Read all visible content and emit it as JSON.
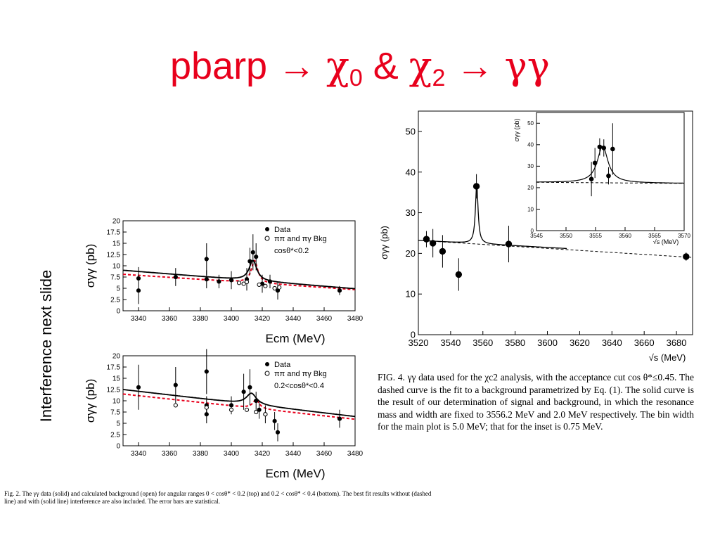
{
  "slide": {
    "title": {
      "part1": "pbarp ",
      "arrow1": "→ ",
      "chi": "χ",
      "sub0": "0",
      "amp": " & ",
      "chi2": "χ",
      "sub2": "2",
      "arrow2": " → ",
      "gg": "γγ"
    },
    "side_note": "Interference next slide",
    "left_caption": "Fig. 2. The γγ data (solid) and calculated background (open) for angular ranges 0 < cosθ* < 0.2 (top) and 0.2 < cosθ* < 0.4 (bottom). The best fit results without (dashed line) and with (solid line) interference are also included. The error bars are statistical.",
    "right_caption": "FIG. 4. γγ data used for the χc2 analysis, with the acceptance cut cos θ*≤0.45. The dashed curve is the fit to a background parametrized by Eq. (1). The solid curve is the result of our determination of signal and background, in which the resonance mass and width are fixed to 3556.2 MeV and 2.0 MeV respectively. The bin width for the main plot is 5.0 MeV; that for the inset is 0.75 MeV."
  },
  "colors": {
    "title": "#e8001c",
    "fit_dashed_left": "#e8001c",
    "ink": "#000000"
  },
  "chart_data": [
    {
      "id": "left-top",
      "type": "scatter",
      "xlabel": "E_cm (MeV)",
      "ylabel": "σγγ (pb)",
      "xlim": [
        3330,
        3480
      ],
      "ylim": [
        0,
        20
      ],
      "xticks": [
        "3340",
        "3360",
        "3380",
        "3400",
        "3420",
        "3440",
        "3460",
        "3480"
      ],
      "yticks": [
        "0",
        "2.5",
        "5",
        "7.5",
        "10",
        "12.5",
        "15",
        "17.5",
        "20"
      ],
      "legend": [
        "Data",
        "ππ and πγ Bkg"
      ],
      "annotation": "cosθ*<0.2",
      "series": [
        {
          "name": "Data",
          "points": [
            {
              "x": 3340,
              "y": 7.2,
              "e": 2.5
            },
            {
              "x": 3340,
              "y": 4.5,
              "e": 3
            },
            {
              "x": 3364,
              "y": 7.5,
              "e": 2
            },
            {
              "x": 3384,
              "y": 11.5,
              "e": 3.5
            },
            {
              "x": 3384,
              "y": 7,
              "e": 2
            },
            {
              "x": 3392,
              "y": 6.5,
              "e": 1.5
            },
            {
              "x": 3400,
              "y": 6.8,
              "e": 2
            },
            {
              "x": 3410,
              "y": 7,
              "e": 2.5
            },
            {
              "x": 3412,
              "y": 11,
              "e": 3
            },
            {
              "x": 3414,
              "y": 13,
              "e": 4
            },
            {
              "x": 3416,
              "y": 12,
              "e": 3
            },
            {
              "x": 3420,
              "y": 6,
              "e": 2
            },
            {
              "x": 3425,
              "y": 6.5,
              "e": 1.5
            },
            {
              "x": 3430,
              "y": 4.5,
              "e": 2
            },
            {
              "x": 3470,
              "y": 4.5,
              "e": 1
            }
          ]
        },
        {
          "name": "ππ and πγ Bkg",
          "points": [
            {
              "x": 3405,
              "y": 6.2
            },
            {
              "x": 3408,
              "y": 6
            },
            {
              "x": 3410,
              "y": 6.4
            },
            {
              "x": 3418,
              "y": 5.8
            },
            {
              "x": 3422,
              "y": 5.5
            },
            {
              "x": 3428,
              "y": 5
            },
            {
              "x": 3431,
              "y": 5.2
            }
          ]
        }
      ],
      "fit_solid": {
        "base": [
          9.0,
          4.9
        ],
        "peak_x": 3414,
        "peak_h": 4.5,
        "width": 3
      },
      "fit_dashed": {
        "base": [
          8.1,
          4.7
        ],
        "peak_x": 3415,
        "peak_h": 5.0,
        "width": 2.5
      }
    },
    {
      "id": "left-bottom",
      "type": "scatter",
      "xlabel": "E_cm (MeV)",
      "ylabel": "σγγ (pb)",
      "xlim": [
        3330,
        3480
      ],
      "ylim": [
        0,
        20
      ],
      "xticks": [
        "3340",
        "3360",
        "3380",
        "3400",
        "3420",
        "3440",
        "3460",
        "3480"
      ],
      "yticks": [
        "0",
        "2.5",
        "5",
        "7.5",
        "10",
        "12.5",
        "15",
        "17.5",
        "20"
      ],
      "legend": [
        "Data",
        "ππ and πγ Bkg"
      ],
      "annotation": "0.2<cosθ*<0.4",
      "series": [
        {
          "name": "Data",
          "points": [
            {
              "x": 3340,
              "y": 13,
              "e": 5
            },
            {
              "x": 3364,
              "y": 13.5,
              "e": 4
            },
            {
              "x": 3384,
              "y": 16.5,
              "e": 5
            },
            {
              "x": 3384,
              "y": 9,
              "e": 2
            },
            {
              "x": 3384,
              "y": 7,
              "e": 2
            },
            {
              "x": 3400,
              "y": 9,
              "e": 2
            },
            {
              "x": 3408,
              "y": 12,
              "e": 4
            },
            {
              "x": 3412,
              "y": 13,
              "e": 4
            },
            {
              "x": 3416,
              "y": 10,
              "e": 2
            },
            {
              "x": 3418,
              "y": 8,
              "e": 2
            },
            {
              "x": 3422,
              "y": 7,
              "e": 2
            },
            {
              "x": 3428,
              "y": 5.5,
              "e": 2
            },
            {
              "x": 3430,
              "y": 3,
              "e": 2
            },
            {
              "x": 3470,
              "y": 6,
              "e": 2
            }
          ]
        },
        {
          "name": "ππ and πγ Bkg",
          "points": [
            {
              "x": 3364,
              "y": 9
            },
            {
              "x": 3384,
              "y": 8.5
            },
            {
              "x": 3400,
              "y": 8
            },
            {
              "x": 3410,
              "y": 8
            },
            {
              "x": 3416,
              "y": 7.5
            },
            {
              "x": 3422,
              "y": 7
            }
          ]
        }
      ],
      "fit_solid": {
        "base": [
          12.5,
          6.5
        ],
        "peak_x": 3413,
        "peak_h": 2.5,
        "width": 4
      },
      "fit_dashed": {
        "base": [
          11.5,
          5.9
        ],
        "peak_x": 3416,
        "peak_h": 2.0,
        "width": 2.5
      }
    },
    {
      "id": "right-main",
      "type": "scatter",
      "xlabel": "√s (MeV)",
      "ylabel": "σγγ (pb)",
      "xlim": [
        3520,
        3690
      ],
      "ylim": [
        0,
        55
      ],
      "xticks": [
        "3520",
        "3540",
        "3560",
        "3580",
        "3600",
        "3620",
        "3640",
        "3660",
        "3680"
      ],
      "yticks": [
        "0",
        "10",
        "20",
        "30",
        "40",
        "50"
      ],
      "series": [
        {
          "name": "Data",
          "points": [
            {
              "x": 3525,
              "y": 23.5,
              "e": 2
            },
            {
              "x": 3529,
              "y": 22.5,
              "e": 3.5
            },
            {
              "x": 3535,
              "y": 20.5,
              "e": 4
            },
            {
              "x": 3545,
              "y": 14.8,
              "e": 4
            },
            {
              "x": 3556,
              "y": 36.5,
              "e": 3
            },
            {
              "x": 3576,
              "y": 22.3,
              "e": 4.5
            },
            {
              "x": 3686,
              "y": 19.2,
              "e": 1
            }
          ]
        }
      ],
      "fit_solid": {
        "base": [
          23.2,
          19.5
        ],
        "peak_x": 3556.2,
        "peak_h": 14.5,
        "width": 1.0
      },
      "fit_dashed": {
        "base": [
          23.2,
          19.0
        ]
      }
    },
    {
      "id": "right-inset",
      "type": "scatter",
      "xlabel": "√s (MeV)",
      "ylabel": "σγγ (pb)",
      "xlim": [
        3545,
        3570
      ],
      "ylim": [
        0,
        55
      ],
      "xticks": [
        "3545",
        "3550",
        "3555",
        "3560",
        "3565",
        "3570"
      ],
      "yticks": [
        "0",
        "10",
        "20",
        "30",
        "40",
        "50"
      ],
      "series": [
        {
          "name": "Data",
          "points": [
            {
              "x": 3554.3,
              "y": 24,
              "e": 8
            },
            {
              "x": 3554.9,
              "y": 31.5,
              "e": 7
            },
            {
              "x": 3555.7,
              "y": 39,
              "e": 4
            },
            {
              "x": 3556.4,
              "y": 38.5,
              "e": 4
            },
            {
              "x": 3557.2,
              "y": 25.5,
              "e": 4
            },
            {
              "x": 3557.9,
              "y": 38,
              "e": 12
            }
          ]
        }
      ],
      "fit_solid": {
        "base": [
          22.5,
          22.0
        ],
        "peak_x": 3556.2,
        "peak_h": 17,
        "width": 1.1
      },
      "fit_dashed": {
        "base": [
          22.5,
          22.0
        ]
      }
    }
  ]
}
